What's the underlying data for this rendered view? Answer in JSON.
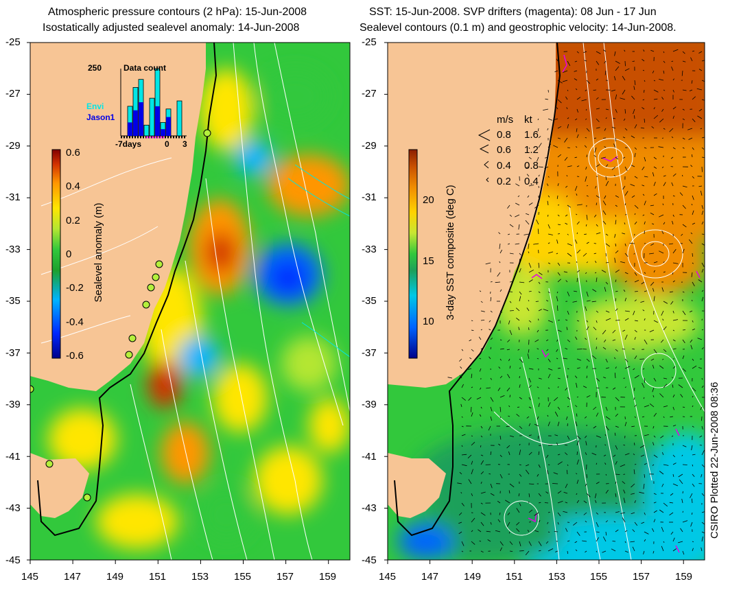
{
  "left_panel": {
    "title_line1": "Atmospheric pressure contours (2 hPa): 15-Jun-2008",
    "title_line2": "Isostatically adjusted sealevel anomaly: 14-Jun-2008",
    "colorbar": {
      "label": "Sealevel anomaly (m)",
      "ticks": [
        "0.6",
        "0.4",
        "0.2",
        "0",
        "-0.2",
        "-0.4",
        "-0.6"
      ],
      "range": [
        -0.6,
        0.6
      ],
      "colormap": [
        "#00008a",
        "#0028ff",
        "#00b4ff",
        "#1ea02d",
        "#32c83c",
        "#b4e632",
        "#ffe600",
        "#ff9600",
        "#d23200",
        "#820000"
      ]
    },
    "inset": {
      "title": "Data count",
      "ymax_label": "250",
      "legend": [
        {
          "name": "Envi",
          "color": "#00e6e6"
        },
        {
          "name": "Jason1",
          "color": "#0000e6"
        }
      ],
      "x_labels": [
        "-7days",
        "0",
        "3"
      ],
      "chart_data": {
        "type": "bar",
        "ymax": 250,
        "series": [
          {
            "name": "Envi",
            "values": [
              0,
              110,
              180,
              210,
              40,
              140,
              250,
              50,
              100,
              0,
              130
            ]
          },
          {
            "name": "Jason1",
            "values": [
              0,
              50,
              95,
              125,
              0,
              0,
              110,
              25,
              70,
              0,
              0
            ]
          }
        ]
      }
    }
  },
  "right_panel": {
    "title_line1": "SST: 15-Jun-2008. SVP drifters (magenta): 08 Jun - 17 Jun",
    "title_line2": "Sealevel contours (0.1 m) and geostrophic velocity: 14-Jun-2008.",
    "colorbar": {
      "label": "3-day SST composite (deg C)",
      "ticks": [
        "20",
        "15",
        "10"
      ],
      "range": [
        7,
        24
      ],
      "colormap": [
        "#00008a",
        "#0064ff",
        "#00c8e6",
        "#1ea05a",
        "#32c83c",
        "#c8e632",
        "#ffd200",
        "#f08c00",
        "#c85000",
        "#8c1e00"
      ]
    },
    "speed_legend": {
      "header_ms": "m/s",
      "header_kt": "kt",
      "rows": [
        {
          "ms": "0.8",
          "kt": "1.6"
        },
        {
          "ms": "0.6",
          "kt": "1.2"
        },
        {
          "ms": "0.4",
          "kt": "0.8"
        },
        {
          "ms": "0.2",
          "kt": "0.4"
        }
      ]
    }
  },
  "axes": {
    "lat_labels": [
      "-25",
      "-27",
      "-29",
      "-31",
      "-33",
      "-35",
      "-37",
      "-39",
      "-41",
      "-43",
      "-45"
    ],
    "lon_labels": [
      "145",
      "147",
      "149",
      "151",
      "153",
      "155",
      "157",
      "159"
    ],
    "lat_range": [
      -45,
      -25
    ],
    "lon_range": [
      145,
      160
    ]
  },
  "footer": "CSIRO Plotted 22-Jun-2008 08:36",
  "colors": {
    "land": "#f7c595",
    "coast": "#000000",
    "contour": "#ffffff",
    "drifter": "#e600e6",
    "station": "#b4f03c"
  }
}
